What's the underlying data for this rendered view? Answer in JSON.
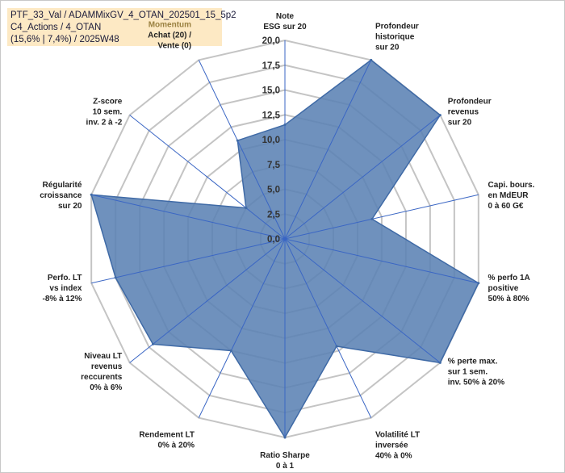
{
  "header": {
    "line1": "PTF_33_Val / ADAMMixGV_4_OTAN_202501_15_5p2",
    "line2": "C4_Actions / 4_OTAN",
    "line3": "(15,6% | 7,4%) / 2025W48"
  },
  "chart_data": {
    "type": "radar",
    "title": "",
    "rmin": 0,
    "rmax": 20,
    "ticks": [
      "0,0",
      "2,5",
      "5,0",
      "7,5",
      "10,0",
      "12,5",
      "15,0",
      "17,5",
      "20,0"
    ],
    "grid": true,
    "colors": {
      "fill": "#5b82b4",
      "stroke": "#3f6aa6",
      "grid": "#c4c4c4",
      "spoke": "#3a66c4"
    },
    "axes": [
      {
        "label": [
          "Note",
          "ESG sur 20"
        ],
        "value": 11.5
      },
      {
        "label": [
          "Profondeur",
          "historique",
          "sur 20"
        ],
        "value": 20
      },
      {
        "label": [
          "Profondeur",
          "revenus",
          "sur 20"
        ],
        "value": 20
      },
      {
        "label": [
          "Capi. bours.",
          "en MdEUR",
          "0 à 60 G€"
        ],
        "value": 9
      },
      {
        "label": [
          "% perfo 1A",
          "positive",
          "50% à 80%"
        ],
        "value": 20
      },
      {
        "label": [
          "% perte max.",
          "sur 1 sem.",
          "inv. 50% à 20%"
        ],
        "value": 20
      },
      {
        "label": [
          "Volatilité LT",
          "inversée",
          "40% à 0%"
        ],
        "value": 12
      },
      {
        "label": [
          "Ratio Sharpe",
          "0 à 1"
        ],
        "value": 20
      },
      {
        "label": [
          "Rendement LT",
          "0% à 20%"
        ],
        "value": 12.5
      },
      {
        "label": [
          "Niveau LT",
          "revenus",
          "reccurents",
          "0% à 6%"
        ],
        "value": 17
      },
      {
        "label": [
          "Perfo. LT",
          "vs index",
          "-8% à 12%"
        ],
        "value": 17.5
      },
      {
        "label": [
          "Régularité",
          "croissance",
          "sur 20"
        ],
        "value": 20
      },
      {
        "label": [
          "Z-score",
          "10 sem.",
          "inv. 2 à -2"
        ],
        "value": 5
      },
      {
        "label": [
          "Momentum",
          "Achat (20) /",
          "Vente (0)"
        ],
        "value": 11
      }
    ]
  }
}
